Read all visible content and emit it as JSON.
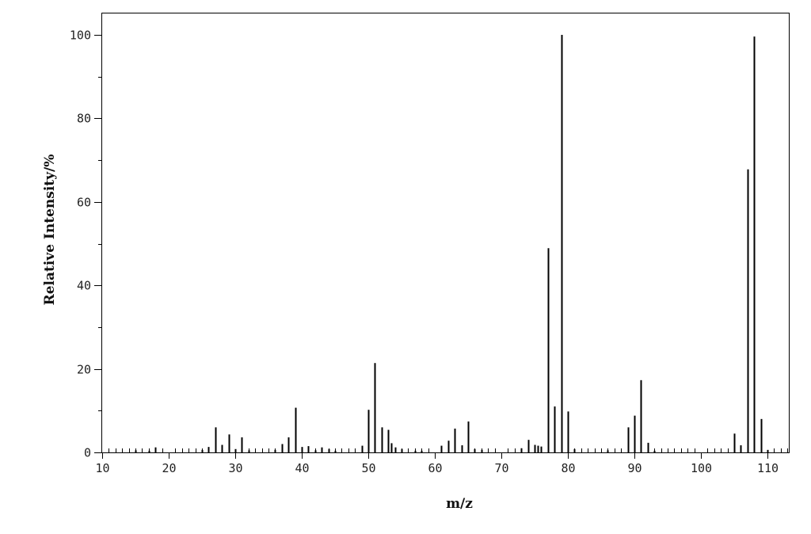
{
  "chart_data": {
    "type": "bar",
    "title": "",
    "xlabel": "m/z",
    "ylabel": "Relative Intensity/%",
    "xlim": [
      10,
      113
    ],
    "ylim": [
      0,
      105
    ],
    "x_ticks": [
      10,
      20,
      30,
      40,
      50,
      60,
      70,
      80,
      90,
      100,
      110
    ],
    "y_ticks": [
      0,
      20,
      40,
      60,
      80,
      100
    ],
    "grid": false,
    "legend": "none",
    "colors": {
      "bars": "#000000",
      "axes": "#000000"
    },
    "series": [
      {
        "x": [
          15,
          17,
          18,
          25,
          26,
          27,
          28,
          29,
          30,
          31,
          32,
          36,
          37,
          38,
          39,
          40,
          41,
          42,
          43,
          44,
          45,
          49,
          50,
          51,
          52,
          53,
          53.5,
          54,
          55,
          57,
          58,
          61,
          62,
          63,
          64,
          65,
          66,
          67,
          73,
          74,
          75,
          75.5,
          76,
          77,
          78,
          79,
          80,
          81,
          86,
          89,
          90,
          91,
          92,
          93,
          105,
          106,
          107,
          108,
          109,
          110
        ],
        "values": [
          0.5,
          0.4,
          1.2,
          0.6,
          1.3,
          6.0,
          1.8,
          4.3,
          0.8,
          3.6,
          0.5,
          0.6,
          2.0,
          3.6,
          10.7,
          1.3,
          1.5,
          0.5,
          1.2,
          0.8,
          0.4,
          1.6,
          10.2,
          21.4,
          6.0,
          5.4,
          2.2,
          1.2,
          0.8,
          0.4,
          0.4,
          1.6,
          2.8,
          5.7,
          1.7,
          7.4,
          0.8,
          0.6,
          1.0,
          3.0,
          1.8,
          1.6,
          1.4,
          48.9,
          11.0,
          100.0,
          9.8,
          0.8,
          0.5,
          6.0,
          8.8,
          17.3,
          2.3,
          0.4,
          4.5,
          1.7,
          67.8,
          99.6,
          8.0,
          0.6
        ]
      }
    ]
  }
}
